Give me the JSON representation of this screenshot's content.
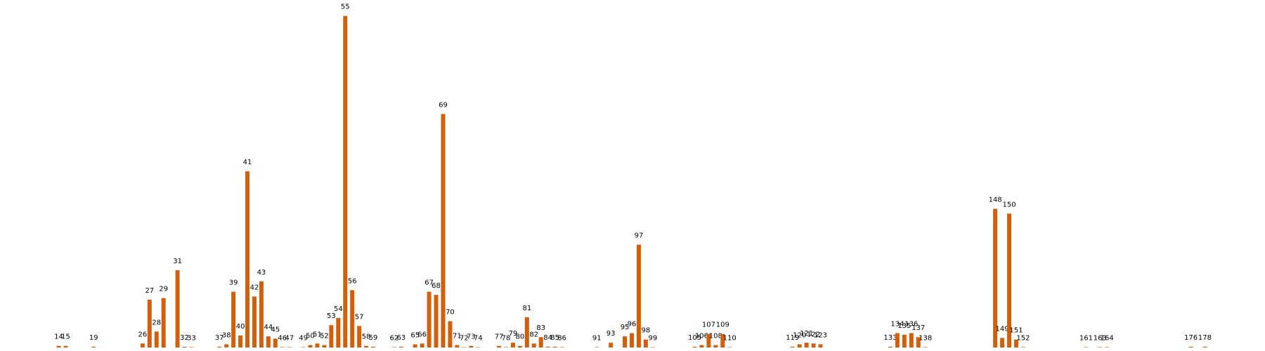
{
  "chart_data": {
    "type": "bar",
    "color": "#d35f0a",
    "x": [
      14,
      15,
      19,
      26,
      27,
      28,
      29,
      31,
      32,
      33,
      37,
      38,
      39,
      40,
      41,
      42,
      43,
      44,
      45,
      46,
      47,
      49,
      50,
      51,
      52,
      53,
      54,
      55,
      56,
      57,
      58,
      59,
      62,
      63,
      65,
      66,
      67,
      68,
      69,
      70,
      71,
      72,
      73,
      74,
      77,
      78,
      79,
      80,
      81,
      82,
      83,
      84,
      85,
      86,
      91,
      93,
      95,
      96,
      97,
      98,
      99,
      105,
      106,
      107,
      108,
      109,
      110,
      119,
      120,
      121,
      122,
      123,
      133,
      134,
      135,
      136,
      137,
      138,
      148,
      149,
      150,
      151,
      152,
      161,
      163,
      164,
      176,
      178
    ],
    "values": [
      2,
      2,
      1,
      5,
      60,
      20,
      62,
      97,
      1,
      0.5,
      1,
      4,
      70,
      15,
      221,
      64,
      83,
      14,
      11,
      0.5,
      0.5,
      0.5,
      3,
      5,
      3,
      28,
      37,
      416,
      72,
      27,
      2,
      1,
      0.5,
      1,
      4,
      5,
      70,
      66,
      293,
      33,
      3,
      0.5,
      2,
      0.5,
      2,
      0.5,
      6,
      2,
      38,
      5,
      13,
      1,
      1,
      0.5,
      0.5,
      6,
      14,
      18,
      129,
      10,
      0.5,
      1,
      3,
      17,
      3,
      17,
      0.5,
      1,
      4,
      6,
      5,
      4,
      1,
      18,
      16,
      18,
      13,
      0.5,
      174,
      12,
      168,
      10,
      0.5,
      0.5,
      0.5,
      0.5,
      1,
      1
    ],
    "xlim": [
      5.6,
      186.6
    ],
    "ylim": [
      0,
      436
    ]
  }
}
